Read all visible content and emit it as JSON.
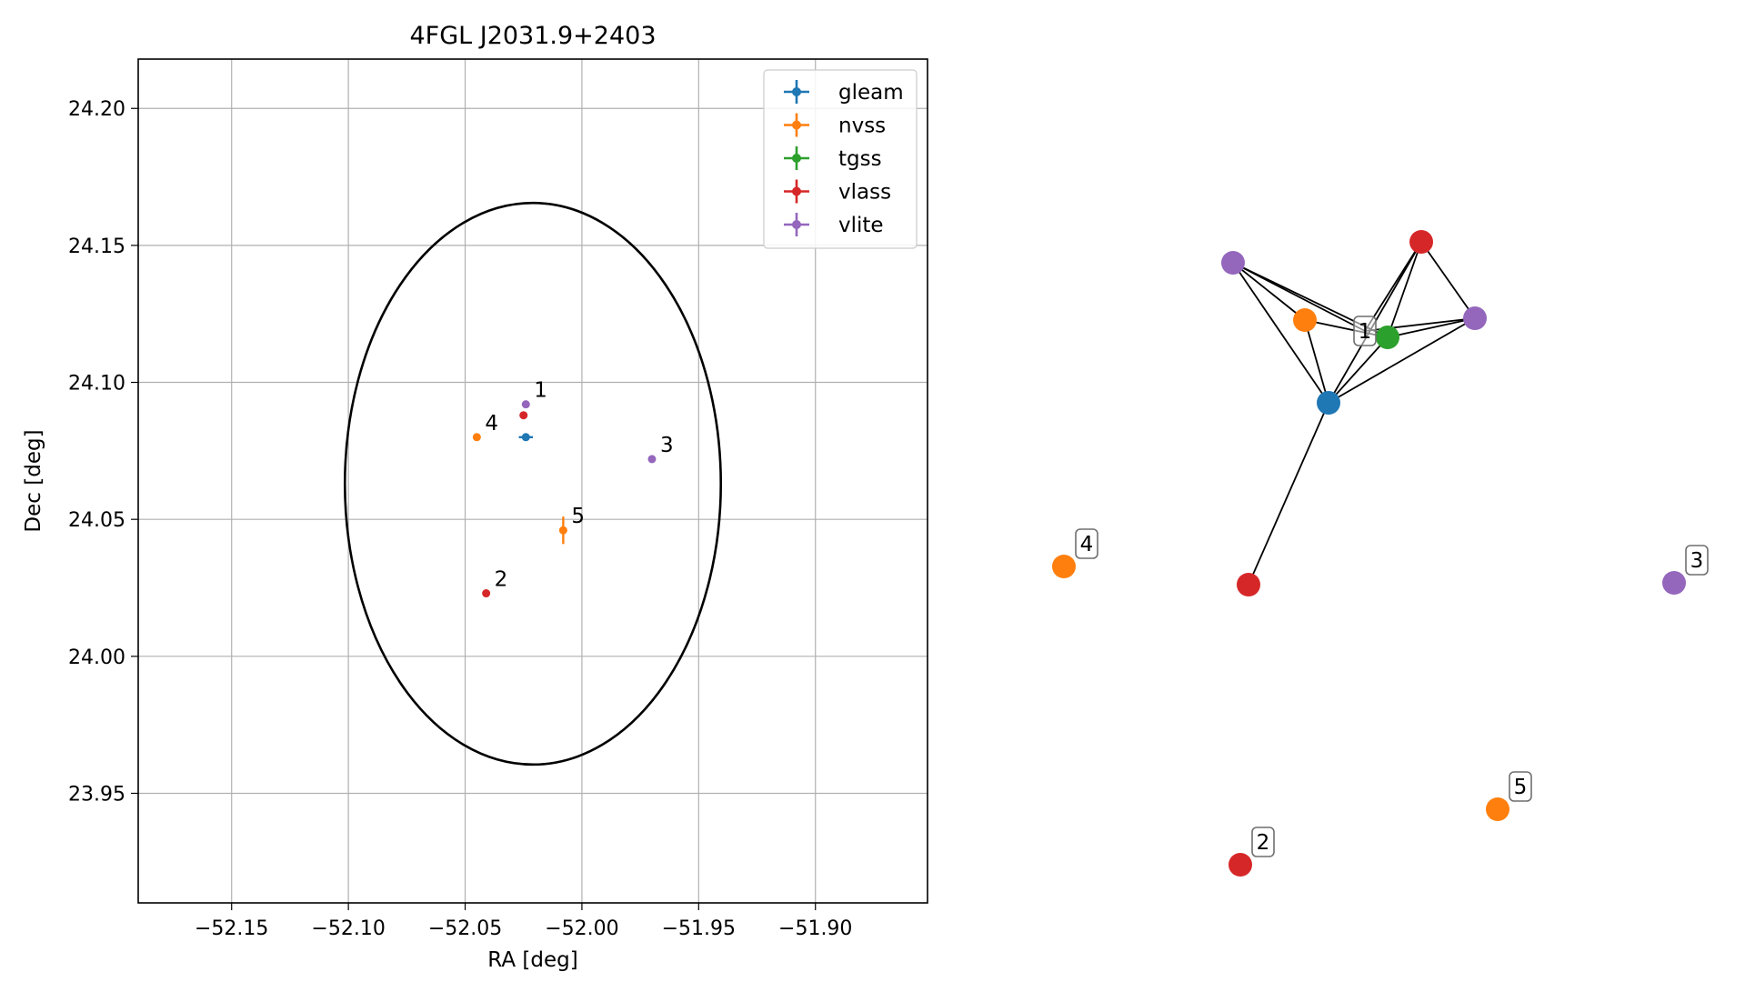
{
  "chart_data": [
    {
      "type": "scatter",
      "title": "4FGL J2031.9+2403",
      "xlabel": "RA [deg]",
      "ylabel": "Dec [deg]",
      "xlim": [
        -52.19,
        -51.852
      ],
      "ylim": [
        23.91,
        24.218
      ],
      "xticks": [
        -52.15,
        -52.1,
        -52.05,
        -52.0,
        -51.95,
        -51.9
      ],
      "xtick_labels": [
        "−52.15",
        "−52.10",
        "−52.05",
        "−52.00",
        "−51.95",
        "−51.90"
      ],
      "yticks": [
        23.95,
        24.0,
        24.05,
        24.1,
        24.15,
        24.2
      ],
      "ytick_labels": [
        "23.95",
        "24.00",
        "24.05",
        "24.10",
        "24.15",
        "24.20"
      ],
      "grid": true,
      "legend_position": "top-right",
      "ellipse": {
        "center": [
          -52.021,
          24.063
        ],
        "half_width_deg": 0.0805,
        "half_height_deg": 0.1025,
        "color": "#000000"
      },
      "series": [
        {
          "name": "gleam",
          "color": "#1f77b4",
          "points": [
            {
              "x": -52.024,
              "y": 24.08,
              "xerr": 0.003,
              "yerr": 0.0008,
              "label": ""
            }
          ]
        },
        {
          "name": "nvss",
          "color": "#ff7f0e",
          "points": [
            {
              "x": -52.045,
              "y": 24.08,
              "xerr": 0.0,
              "yerr": 0.0,
              "label": "4"
            },
            {
              "x": -52.008,
              "y": 24.046,
              "xerr": 0.0005,
              "yerr": 0.005,
              "label": "5"
            }
          ]
        },
        {
          "name": "tgss",
          "color": "#2ca02c",
          "points": []
        },
        {
          "name": "vlass",
          "color": "#d62728",
          "points": [
            {
              "x": -52.025,
              "y": 24.088,
              "xerr": 0.0,
              "yerr": 0.0,
              "label": ""
            },
            {
              "x": -52.041,
              "y": 24.023,
              "xerr": 0.0,
              "yerr": 0.0,
              "label": "2"
            }
          ]
        },
        {
          "name": "vlite",
          "color": "#9467bd",
          "points": [
            {
              "x": -52.024,
              "y": 24.092,
              "xerr": 0.0,
              "yerr": 0.0,
              "label": "1"
            },
            {
              "x": -51.97,
              "y": 24.072,
              "xerr": 0.0,
              "yerr": 0.0,
              "label": "3"
            }
          ]
        }
      ]
    },
    {
      "type": "network",
      "nodes": [
        {
          "id": "a",
          "color": "#1f77b4",
          "label": ""
        },
        {
          "id": "b",
          "color": "#ff7f0e",
          "label": ""
        },
        {
          "id": "c",
          "color": "#2ca02c",
          "label": ""
        },
        {
          "id": "d",
          "color": "#d62728",
          "label": ""
        },
        {
          "id": "e",
          "color": "#d62728",
          "label": ""
        },
        {
          "id": "f",
          "color": "#9467bd",
          "label": ""
        },
        {
          "id": "g",
          "color": "#9467bd",
          "label": ""
        },
        {
          "id": "h",
          "color": "#ff7f0e",
          "label": "4"
        },
        {
          "id": "i",
          "color": "#9467bd",
          "label": "3"
        },
        {
          "id": "j",
          "color": "#ff7f0e",
          "label": "5"
        },
        {
          "id": "k",
          "color": "#d62728",
          "label": "2"
        }
      ],
      "edges": [
        [
          "f",
          "b"
        ],
        [
          "f",
          "c"
        ],
        [
          "f",
          "a"
        ],
        [
          "f",
          "1"
        ],
        [
          "b",
          "c"
        ],
        [
          "b",
          "a"
        ],
        [
          "a",
          "c"
        ],
        [
          "a",
          "d"
        ],
        [
          "a",
          "g"
        ],
        [
          "a",
          "e"
        ],
        [
          "c",
          "d"
        ],
        [
          "c",
          "g"
        ],
        [
          "d",
          "g"
        ],
        [
          "1",
          "g"
        ],
        [
          "1",
          "d"
        ]
      ],
      "group_labels": [
        {
          "label": "1"
        }
      ]
    }
  ]
}
